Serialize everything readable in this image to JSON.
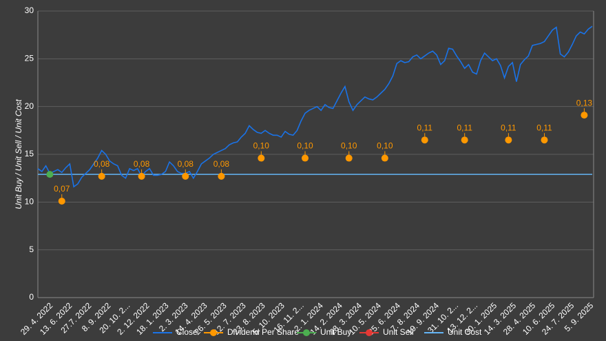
{
  "chart_data": {
    "type": "line",
    "y_label": "Unit Buy / Unit Sell / Unit Cost",
    "ylim": [
      0,
      30
    ],
    "yticks": [
      0,
      5,
      10,
      15,
      20,
      25,
      30
    ],
    "grid": true,
    "legend": "bottom",
    "x_tick_labels": [
      "29. 4. 2022",
      "13. 6. 2022",
      "27.7. 2022",
      "8. 9. 2022",
      "20. 10. 2...",
      "2. 12. 2022",
      "18. 1. 2023",
      "2. 3. 2023",
      "14. 4. 2023",
      "26. 5. 2023",
      "12. 7. 2023",
      "23. 8. 2023",
      "5. 10. 2023",
      "16. 11. 2...",
      "2. 1. 2024",
      "14. 2. 2024",
      "28. 3. 2024",
      "10. 5. 2024",
      "25. 6. 2024",
      "7. 8. 2024",
      "19. 9. 2024",
      "31. 10. 2...",
      "13. 12. 2...",
      "30. 1. 2025",
      "14. 3. 2025",
      "28. 4. 2025",
      "10. 6. 2025",
      "24. 7. 2025",
      "5. 9. 2025"
    ],
    "series": [
      {
        "name": "Close",
        "type": "line",
        "color": "#1a73e8",
        "values": [
          13.5,
          13.2,
          13.8,
          13.0,
          13.2,
          13.4,
          13.1,
          13.6,
          14.0,
          11.6,
          11.9,
          12.6,
          13.0,
          13.4,
          14.0,
          14.6,
          15.4,
          15.0,
          14.3,
          14.0,
          13.8,
          12.8,
          12.5,
          13.5,
          13.3,
          13.5,
          12.7,
          13.2,
          13.5,
          12.8,
          12.8,
          12.9,
          13.2,
          14.2,
          13.8,
          13.2,
          13.0,
          13.0,
          13.2,
          12.5,
          13.2,
          14.0,
          14.3,
          14.6,
          15.0,
          15.2,
          15.4,
          15.6,
          16.0,
          16.2,
          16.3,
          16.8,
          17.2,
          18.0,
          17.6,
          17.3,
          17.2,
          17.5,
          17.2,
          17.0,
          17.0,
          16.8,
          17.4,
          17.1,
          17.0,
          17.5,
          18.5,
          19.3,
          19.6,
          19.8,
          20.0,
          19.6,
          20.2,
          19.9,
          19.8,
          20.6,
          21.4,
          22.1,
          20.5,
          19.6,
          20.2,
          20.6,
          21.0,
          20.8,
          20.7,
          21.0,
          21.4,
          21.8,
          22.4,
          23.2,
          24.5,
          24.8,
          24.6,
          24.7,
          25.2,
          25.4,
          25.0,
          25.3,
          25.6,
          25.8,
          25.4,
          24.4,
          24.8,
          26.1,
          26.0,
          25.3,
          24.7,
          24.0,
          24.4,
          23.6,
          23.4,
          24.8,
          25.6,
          25.2,
          24.8,
          25.0,
          24.3,
          23.0,
          24.2,
          24.6,
          22.6,
          24.4,
          24.9,
          25.3,
          26.4,
          26.5,
          26.6,
          26.8,
          27.4,
          28.0,
          28.3,
          25.5,
          25.2,
          25.7,
          26.5,
          27.4,
          27.8,
          27.6,
          28.1,
          28.4
        ]
      },
      {
        "name": "Dividend Per Share",
        "type": "points",
        "color": "#ff9800",
        "values": [
          null,
          null,
          null,
          null,
          null,
          null,
          10.1,
          null,
          null,
          null,
          null,
          null,
          null,
          null,
          null,
          null,
          12.7,
          null,
          null,
          null,
          null,
          null,
          null,
          null,
          null,
          null,
          12.7,
          null,
          null,
          null,
          null,
          null,
          null,
          null,
          null,
          null,
          null,
          12.7,
          null,
          null,
          null,
          null,
          null,
          null,
          null,
          null,
          12.7,
          null,
          null,
          null,
          null,
          null,
          null,
          null,
          null,
          null,
          14.6,
          null,
          null,
          null,
          null,
          null,
          null,
          null,
          null,
          null,
          null,
          14.6,
          null,
          null,
          null,
          null,
          null,
          null,
          null,
          null,
          null,
          null,
          14.6,
          null,
          null,
          null,
          null,
          null,
          null,
          null,
          null,
          14.6,
          null,
          null,
          null,
          null,
          null,
          null,
          null,
          null,
          null,
          16.5,
          null,
          null,
          null,
          null,
          null,
          null,
          null,
          null,
          null,
          16.5,
          null,
          null,
          null,
          null,
          null,
          null,
          null,
          null,
          null,
          null,
          16.5,
          null,
          null,
          null,
          null,
          null,
          null,
          null,
          null,
          16.5,
          null,
          null,
          null,
          null,
          null,
          null,
          null,
          null,
          null,
          19.1,
          null,
          null
        ],
        "labels": [
          null,
          null,
          null,
          null,
          null,
          null,
          "0,07",
          null,
          null,
          null,
          null,
          null,
          null,
          null,
          null,
          null,
          "0,08",
          null,
          null,
          null,
          null,
          null,
          null,
          null,
          null,
          null,
          "0,08",
          null,
          null,
          null,
          null,
          null,
          null,
          null,
          null,
          null,
          null,
          "0,08",
          null,
          null,
          null,
          null,
          null,
          null,
          null,
          null,
          "0,08",
          null,
          null,
          null,
          null,
          null,
          null,
          null,
          null,
          null,
          "0,10",
          null,
          null,
          null,
          null,
          null,
          null,
          null,
          null,
          null,
          null,
          "0,10",
          null,
          null,
          null,
          null,
          null,
          null,
          null,
          null,
          null,
          null,
          "0,10",
          null,
          null,
          null,
          null,
          null,
          null,
          null,
          null,
          "0,10",
          null,
          null,
          null,
          null,
          null,
          null,
          null,
          null,
          null,
          "0,11",
          null,
          null,
          null,
          null,
          null,
          null,
          null,
          null,
          null,
          "0,11",
          null,
          null,
          null,
          null,
          null,
          null,
          null,
          null,
          null,
          null,
          "0,11",
          null,
          null,
          null,
          null,
          null,
          null,
          null,
          null,
          "0,11",
          null,
          null,
          null,
          null,
          null,
          null,
          null,
          null,
          null,
          "0,13",
          null,
          null
        ]
      },
      {
        "name": "Unit Buy",
        "type": "points",
        "color": "#4caf50",
        "values": [
          null,
          null,
          null,
          12.9,
          null,
          null,
          null,
          null,
          null,
          null,
          null,
          null,
          null,
          null,
          null,
          null,
          null,
          null,
          null,
          null,
          null,
          null,
          null,
          null,
          null,
          null,
          null,
          null,
          null,
          null,
          null,
          null,
          null,
          null,
          null,
          null,
          null,
          null,
          null,
          null,
          null,
          null,
          null,
          null,
          null,
          null,
          null,
          null,
          null,
          null,
          null,
          null,
          null,
          null,
          null,
          null,
          null,
          null,
          null,
          null,
          null,
          null,
          null,
          null,
          null,
          null,
          null,
          null,
          null,
          null,
          null,
          null,
          null,
          null,
          null,
          null,
          null,
          null,
          null,
          null,
          null,
          null,
          null,
          null,
          null,
          null,
          null,
          null,
          null,
          null,
          null,
          null,
          null,
          null,
          null,
          null,
          null,
          null,
          null,
          null,
          null,
          null,
          null,
          null,
          null,
          null,
          null,
          null,
          null,
          null,
          null,
          null,
          null,
          null,
          null,
          null,
          null,
          null,
          null,
          null,
          null,
          null,
          null,
          null,
          null,
          null,
          null,
          null,
          null,
          null,
          null,
          null,
          null,
          null,
          null,
          null,
          null,
          null,
          null,
          null
        ]
      },
      {
        "name": "Unit Sell",
        "type": "points",
        "color": "#e53935",
        "values": [
          null,
          null,
          null,
          null,
          null,
          null,
          null,
          null,
          null,
          null,
          null,
          null,
          null,
          null,
          null,
          null,
          null,
          null,
          null,
          null,
          null,
          null,
          null,
          null,
          null,
          null,
          null,
          null,
          null,
          null,
          null,
          null,
          null,
          null,
          null,
          null,
          null,
          null,
          null,
          null,
          null,
          null,
          null,
          null,
          null,
          null,
          null,
          null,
          null,
          null,
          null,
          null,
          null,
          null,
          null,
          null,
          null,
          null,
          null,
          null,
          null,
          null,
          null,
          null,
          null,
          null,
          null,
          null,
          null,
          null,
          null,
          null,
          null,
          null,
          null,
          null,
          null,
          null,
          null,
          null,
          null,
          null,
          null,
          null,
          null,
          null,
          null,
          null,
          null,
          null,
          null,
          null,
          null,
          null,
          null,
          null,
          null,
          null,
          null,
          null,
          null,
          null,
          null,
          null,
          null,
          null,
          null,
          null,
          null,
          null,
          null,
          null,
          null,
          null,
          null,
          null,
          null,
          null,
          null,
          null,
          null,
          null,
          null,
          null,
          null,
          null,
          null,
          null,
          null,
          null,
          null,
          null,
          null,
          null,
          null,
          null,
          null,
          null,
          null,
          null
        ]
      },
      {
        "name": "Unit Cost",
        "type": "hline",
        "color": "#64b5f6",
        "value": 12.9
      }
    ]
  }
}
